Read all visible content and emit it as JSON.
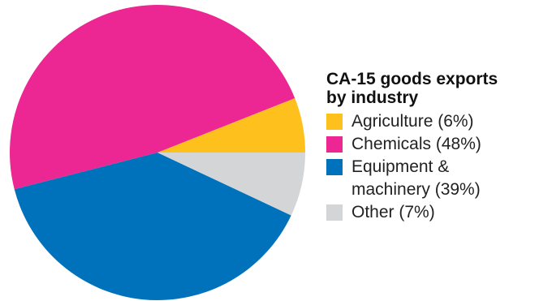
{
  "chart_data": {
    "type": "pie",
    "title": "CA-15 goods exports by industry",
    "title_lines": [
      "CA-15 goods exports",
      "by industry"
    ],
    "start_angle_deg": 0,
    "direction": "counter-clockwise",
    "slices": [
      {
        "name": "Agriculture",
        "value": 6,
        "label": "Agriculture (6%)",
        "label_lines": [
          "Agriculture (6%)"
        ],
        "color": "#fdc01c"
      },
      {
        "name": "Chemicals",
        "value": 48,
        "label": "Chemicals (48%)",
        "label_lines": [
          "Chemicals (48%)"
        ],
        "color": "#ec2793"
      },
      {
        "name": "Equipment & machinery",
        "value": 39,
        "label": "Equipment & machinery (39%)",
        "label_lines": [
          "Equipment &",
          "machinery (39%)"
        ],
        "color": "#0072bc"
      },
      {
        "name": "Other",
        "value": 7,
        "label": "Other (7%)",
        "label_lines": [
          "Other (7%)"
        ],
        "color": "#d4d5d7"
      }
    ],
    "legend_position": "right"
  }
}
